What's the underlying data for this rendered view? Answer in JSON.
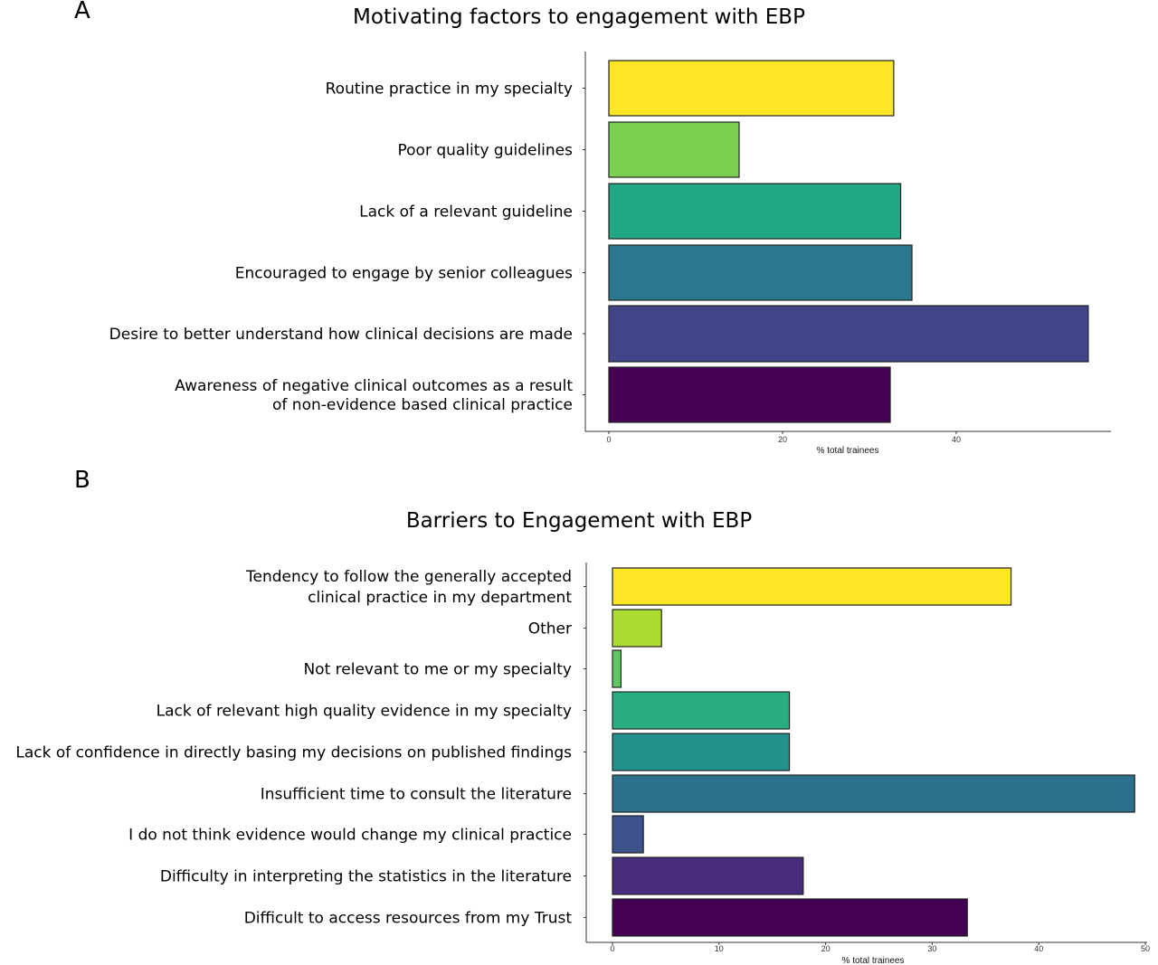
{
  "panels": [
    {
      "letter": "A",
      "chart_data": {
        "type": "bar",
        "orientation": "horizontal",
        "title": "Motivating factors to engagement with EBP",
        "xlabel": "% total trainees",
        "ylabel": "",
        "xlim": [
          0,
          57
        ],
        "xticks": [
          0,
          20,
          40
        ],
        "grid": false,
        "categories": [
          [
            "Routine practice in my  specialty"
          ],
          [
            "Poor quality guidelines"
          ],
          [
            "Lack of a relevant guideline"
          ],
          [
            "Encouraged to engage by senior colleagues"
          ],
          [
            "Desire to better understand how clinical decisions are made"
          ],
          [
            "Awareness of negative clinical outcomes as a result",
            "of non-evidence based clinical practice"
          ]
        ],
        "values": [
          32.8,
          15.0,
          33.6,
          34.9,
          55.2,
          32.4
        ],
        "colors": [
          "#fde725",
          "#7ad151",
          "#22a884",
          "#2a788e",
          "#414487",
          "#440154"
        ]
      }
    },
    {
      "letter": "B",
      "chart_data": {
        "type": "bar",
        "orientation": "horizontal",
        "title": "Barriers to Engagement with EBP",
        "xlabel": "% total trainees",
        "ylabel": "",
        "xlim": [
          0,
          50
        ],
        "xticks": [
          0,
          10,
          20,
          30,
          40,
          50
        ],
        "grid": false,
        "categories": [
          [
            "Tendency to follow the generally accepted",
            "clinical practice in my department"
          ],
          [
            "Other"
          ],
          [
            "Not relevant to me or my specialty"
          ],
          [
            "Lack of relevant high quality evidence in my specialty"
          ],
          [
            "Lack of confidence in directly basing my decisions on published findings"
          ],
          [
            "Insufficient time to consult the literature"
          ],
          [
            "I do not think evidence would change my clinical practice"
          ],
          [
            "Difficulty in interpreting the statistics in the literature"
          ],
          [
            "Difficult to access resources from my Trust"
          ]
        ],
        "values": [
          37.4,
          4.6,
          0.8,
          16.6,
          16.6,
          49.0,
          2.9,
          17.9,
          33.3
        ],
        "colors": [
          "#fde725",
          "#addc30",
          "#5ec962",
          "#28ae80",
          "#21918c",
          "#2c728e",
          "#3b528b",
          "#472d7b",
          "#440154"
        ]
      }
    }
  ]
}
